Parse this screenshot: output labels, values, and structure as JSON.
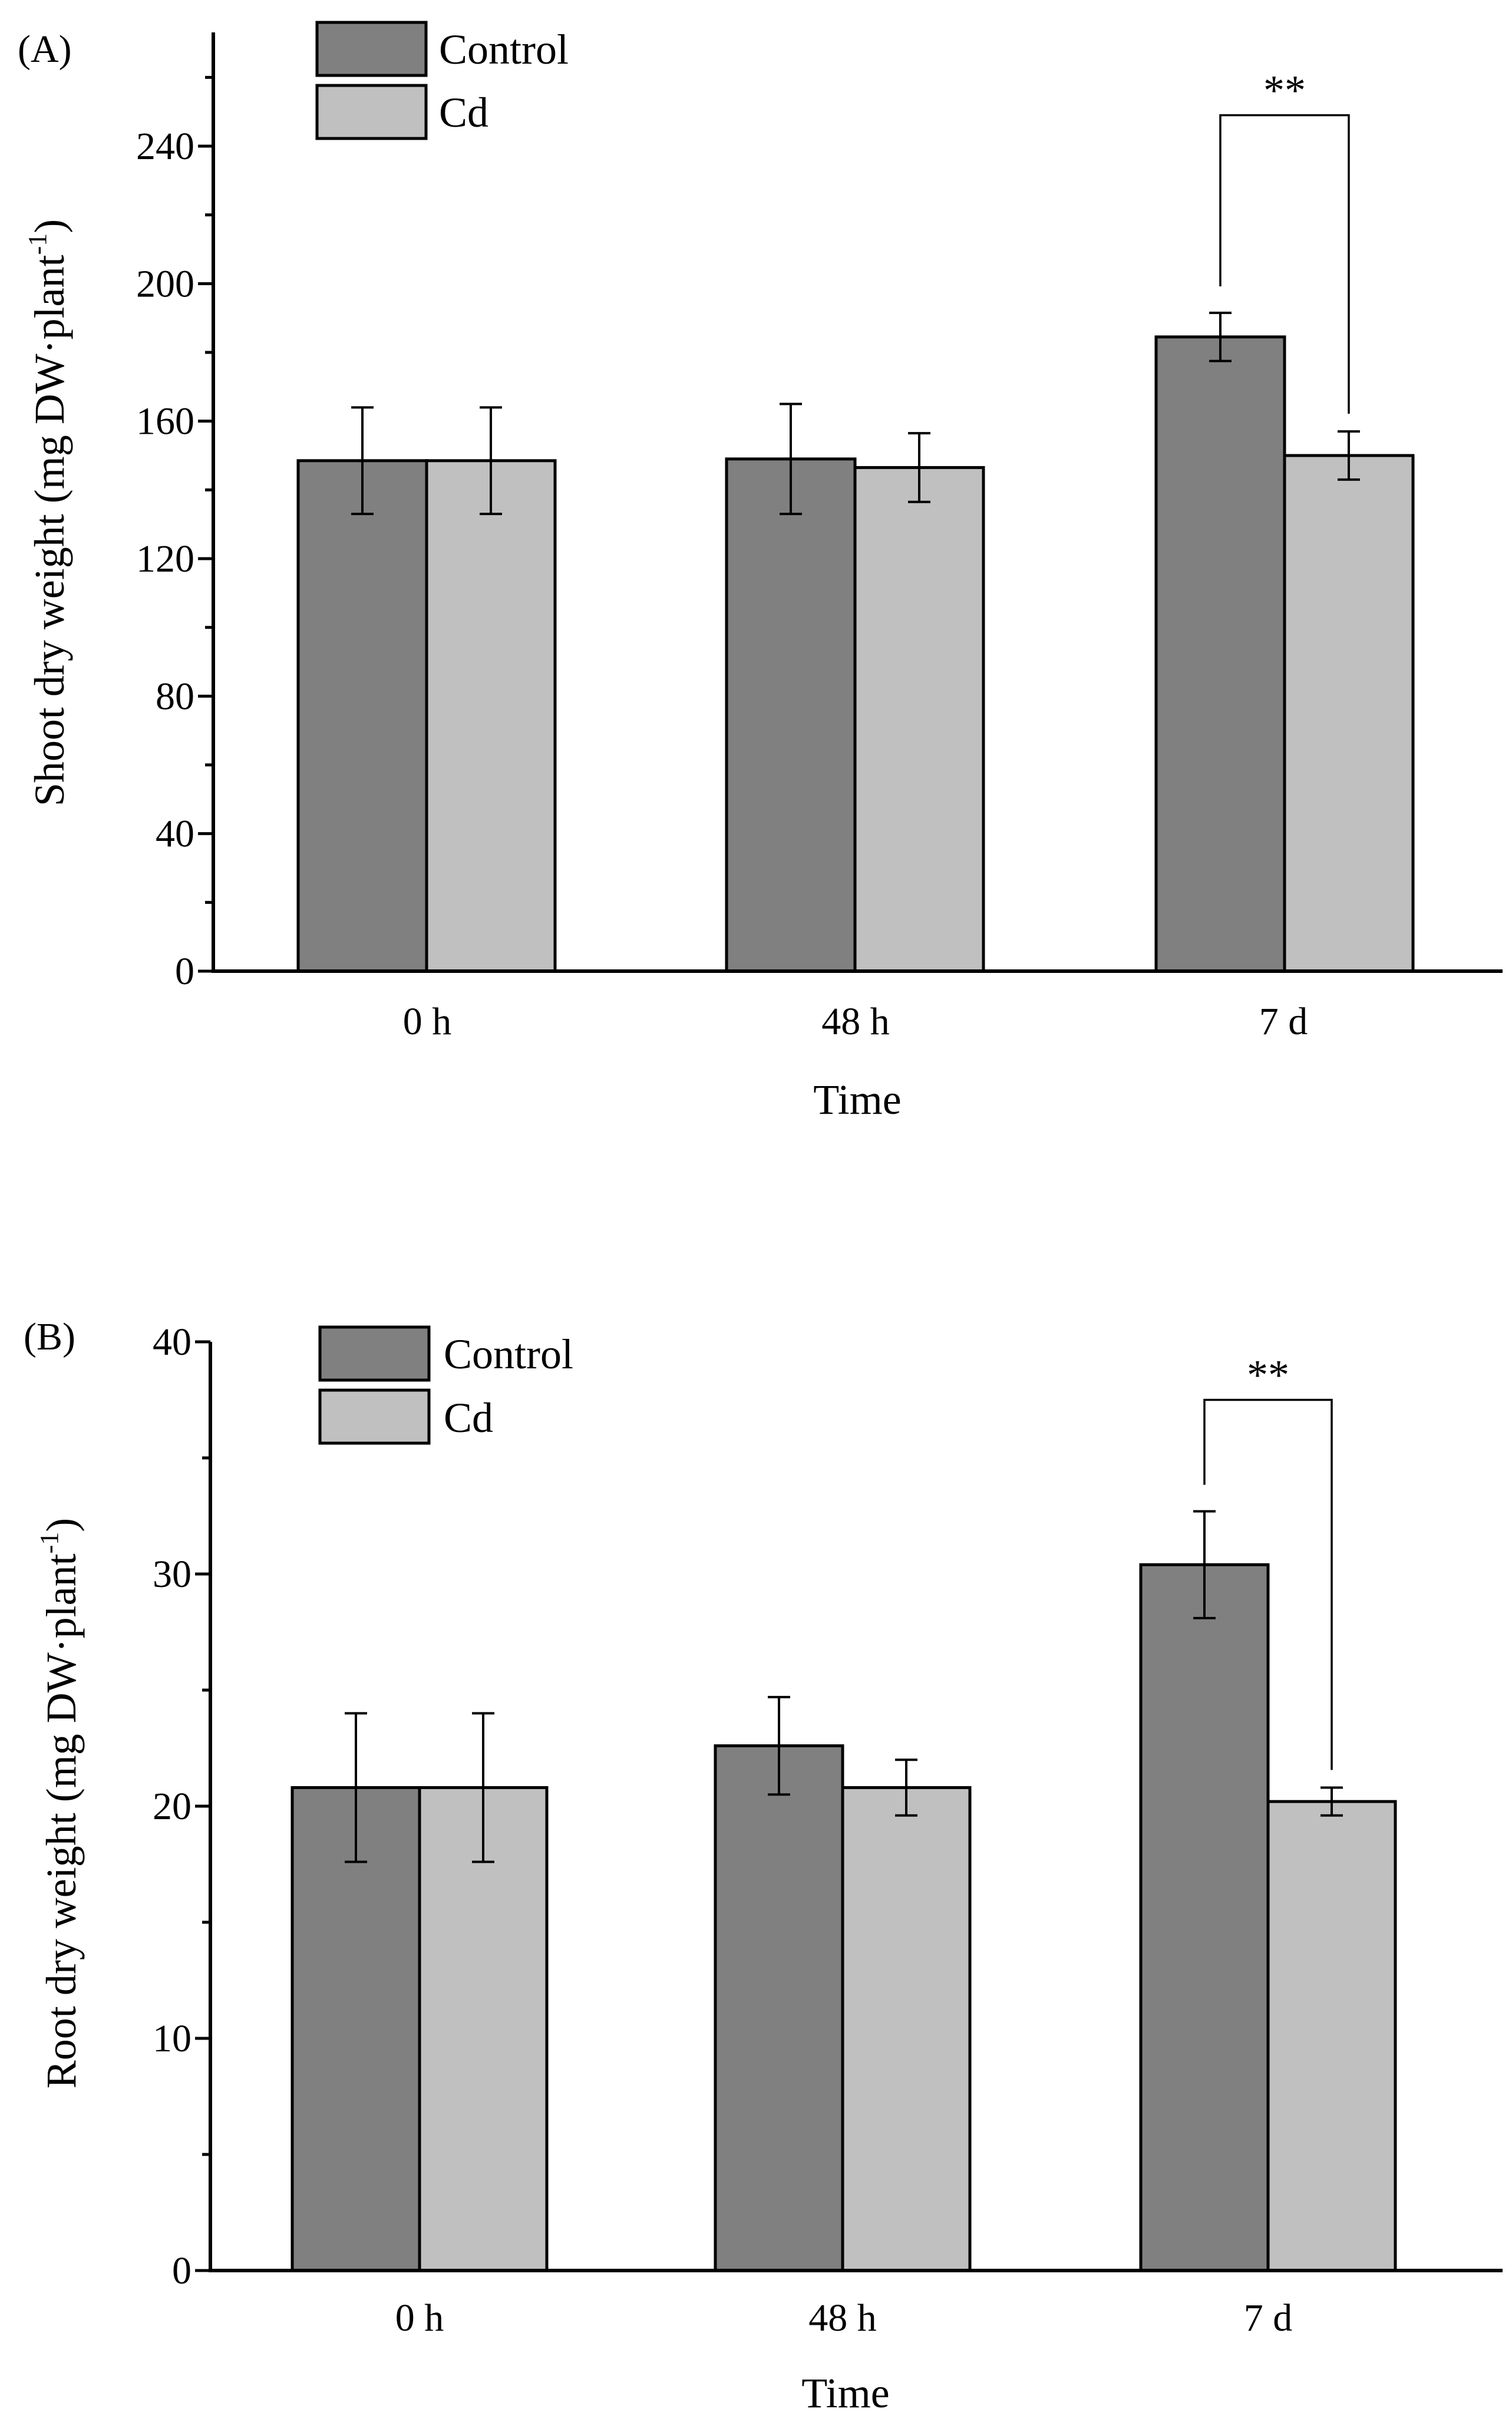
{
  "chart_data": [
    {
      "panel": "(A)",
      "type": "bar",
      "title": "",
      "xlabel": "Time",
      "ylabel": "Shoot dry weight (mg DW·plant",
      "ylabel_sup": "-1",
      "ylabel_close": ")",
      "categories": [
        "0 h",
        "48 h",
        "7 d"
      ],
      "series": [
        {
          "name": "Control",
          "values": [
            148.5,
            149.0,
            184.5
          ],
          "errors": [
            15.5,
            16.0,
            7.0
          ],
          "color": "#808080"
        },
        {
          "name": "Cd",
          "values": [
            148.5,
            146.5,
            150.0
          ],
          "errors": [
            15.5,
            10.0,
            7.0
          ],
          "color": "#c0c0c0"
        }
      ],
      "ylim": [
        0,
        260
      ],
      "yticks": [
        0,
        40,
        80,
        120,
        160,
        200,
        240
      ],
      "yminor_step": 20,
      "significance": {
        "category": "7 d",
        "label": "**",
        "top": 249
      }
    },
    {
      "panel": "(B)",
      "type": "bar",
      "title": "",
      "xlabel": "Time",
      "ylabel": "Root dry weight (mg DW·plant",
      "ylabel_sup": "-1",
      "ylabel_close": ")",
      "categories": [
        "0 h",
        "48 h",
        "7 d"
      ],
      "series": [
        {
          "name": "Control",
          "values": [
            20.8,
            22.6,
            30.4
          ],
          "errors": [
            3.2,
            2.1,
            2.3
          ],
          "color": "#808080"
        },
        {
          "name": "Cd",
          "values": [
            20.8,
            20.8,
            20.2
          ],
          "errors": [
            3.2,
            1.2,
            0.6
          ],
          "color": "#c0c0c0"
        }
      ],
      "ylim": [
        0,
        40
      ],
      "yticks": [
        0,
        10,
        20,
        30,
        40
      ],
      "yminor_step": 5,
      "significance": {
        "category": "7 d",
        "label": "**",
        "top": 37.5
      }
    }
  ]
}
